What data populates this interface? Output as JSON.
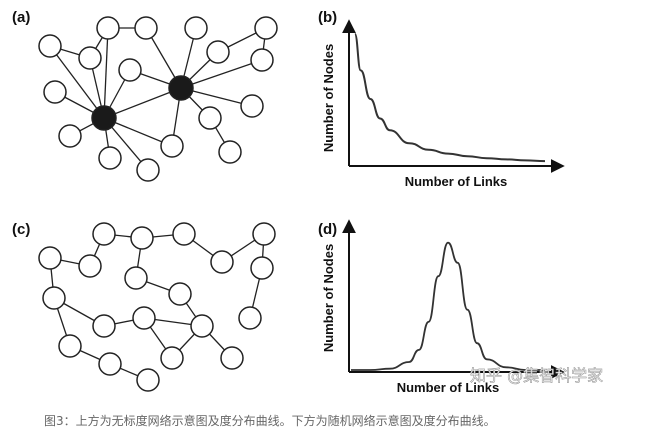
{
  "figure": {
    "panels": {
      "a": {
        "label": "(a)"
      },
      "b": {
        "label": "(b)",
        "xlabel": "Number of Links",
        "ylabel": "Number of Nodes"
      },
      "c": {
        "label": "(c)"
      },
      "d": {
        "label": "(d)",
        "xlabel": "Number of Links",
        "ylabel": "Number of Nodes"
      }
    },
    "watermark": "知乎 @集智科学家",
    "caption": "图3：上方为无标度网络示意图及度分布曲线。下方为随机网络示意图及度分布曲线。"
  },
  "chart_data": [
    {
      "type": "line",
      "panel": "b",
      "description_shape": "power-law decay",
      "x": [
        0.02,
        0.05,
        0.1,
        0.15,
        0.2,
        0.3,
        0.4,
        0.5,
        0.6,
        0.7,
        0.8,
        0.9,
        1.0
      ],
      "y": [
        1.0,
        0.72,
        0.5,
        0.35,
        0.26,
        0.16,
        0.11,
        0.08,
        0.06,
        0.045,
        0.035,
        0.028,
        0.022
      ],
      "xlabel": "Number of Links",
      "ylabel": "Number of Nodes",
      "grid": false
    },
    {
      "type": "line",
      "panel": "d",
      "description_shape": "bell curve",
      "x": [
        0.0,
        0.1,
        0.2,
        0.3,
        0.35,
        0.4,
        0.45,
        0.5,
        0.55,
        0.6,
        0.65,
        0.7,
        0.8,
        0.9,
        1.0
      ],
      "y": [
        0.0,
        0.0,
        0.01,
        0.06,
        0.15,
        0.36,
        0.7,
        0.95,
        0.8,
        0.45,
        0.2,
        0.08,
        0.02,
        0.0,
        0.0
      ],
      "xlabel": "Number of Links",
      "ylabel": "Number of Nodes",
      "grid": false
    }
  ]
}
